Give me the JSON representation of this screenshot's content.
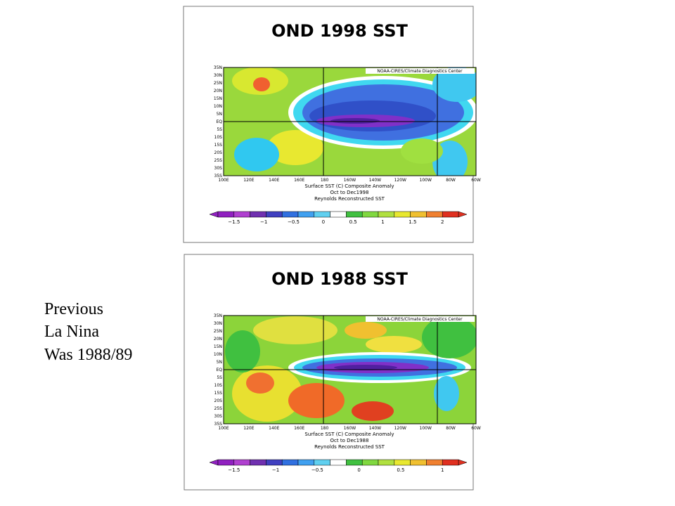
{
  "side_text": [
    "Previous",
    "La Nina",
    "Was 1988/89"
  ],
  "panels": [
    {
      "title": "OND 1998 SST",
      "lat_labels": [
        "35N",
        "30N",
        "25N",
        "20N",
        "15N",
        "10N",
        "5N",
        "EQ",
        "5S",
        "10S",
        "15S",
        "20S",
        "25S",
        "30S",
        "35S"
      ],
      "lon_labels": [
        "100E",
        "120E",
        "140E",
        "160E",
        "180",
        "160W",
        "140W",
        "120W",
        "100W",
        "80W",
        "60W"
      ],
      "credit": "NOAA-CIRES/Climate Diagnostics Center",
      "caption": [
        "Surface SST (C) Composite Anomaly",
        "Oct to Dec1998",
        "Reynolds Reconstructed SST"
      ],
      "colorbar_labels": [
        "−1.5",
        "−1",
        "−0.5",
        "0",
        "0.5",
        "1",
        "1.5",
        "2"
      ]
    },
    {
      "title": "OND 1988 SST",
      "lat_labels": [
        "35N",
        "30N",
        "25N",
        "20N",
        "15N",
        "10N",
        "5N",
        "EQ",
        "5S",
        "10S",
        "15S",
        "20S",
        "25S",
        "30S",
        "35S"
      ],
      "lon_labels": [
        "100E",
        "120E",
        "140E",
        "160E",
        "180",
        "160W",
        "140W",
        "120W",
        "100W",
        "80W",
        "60W"
      ],
      "credit": "NOAA-CIRES/Climate Diagnostics Center",
      "caption": [
        "Surface SST (C) Composite Anomaly",
        "Oct to Dec1988",
        "Reynolds Reconstructed SST"
      ],
      "colorbar_labels": [
        "−1.5",
        "−1",
        "−0.5",
        "0",
        "0.5",
        "1"
      ]
    }
  ]
}
